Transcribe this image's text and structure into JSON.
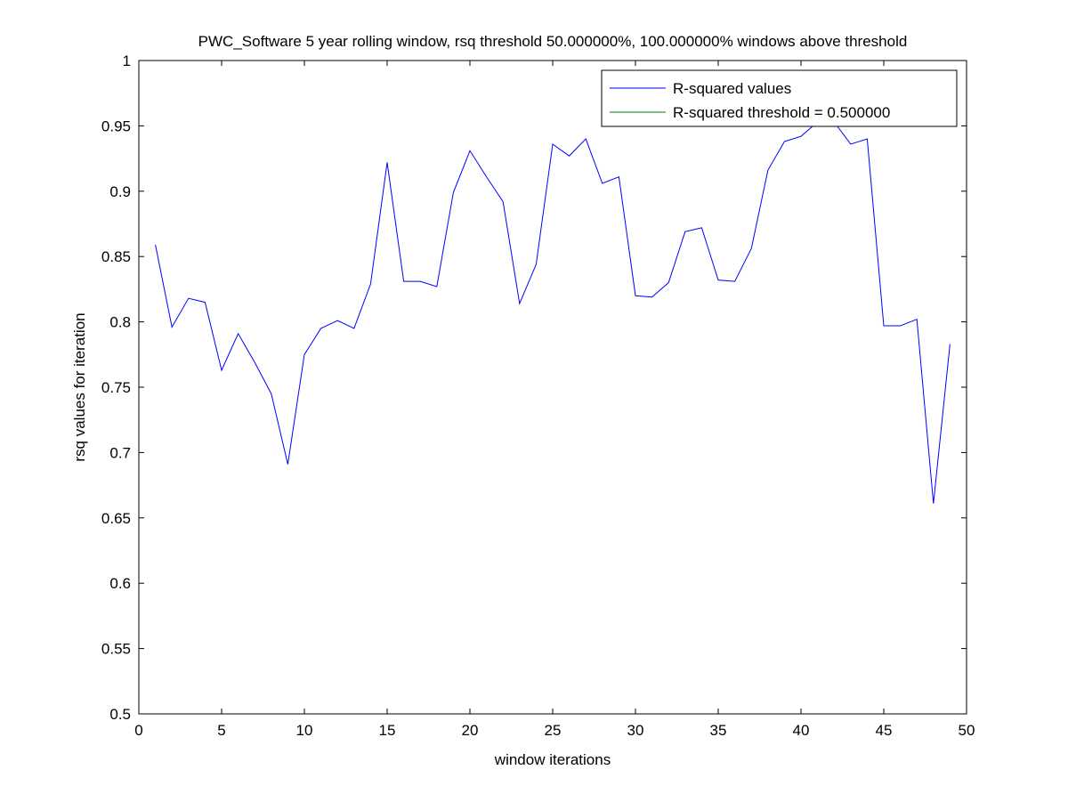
{
  "chart_data": {
    "type": "line",
    "title": "PWC_Software 5 year rolling window, rsq threshold 50.000000%, 100.000000% windows above threshold",
    "xlabel": "window iterations",
    "ylabel": "rsq values for iteration",
    "xlim": [
      0,
      50
    ],
    "ylim": [
      0.5,
      1
    ],
    "xticks": [
      0,
      5,
      10,
      15,
      20,
      25,
      30,
      35,
      40,
      45,
      50
    ],
    "xtick_labels": [
      "0",
      "5",
      "10",
      "15",
      "20",
      "25",
      "30",
      "35",
      "40",
      "45",
      "50"
    ],
    "yticks": [
      0.5,
      0.55,
      0.6,
      0.65,
      0.7,
      0.75,
      0.8,
      0.85,
      0.9,
      0.95,
      1
    ],
    "ytick_labels": [
      "0.5",
      "0.55",
      "0.6",
      "0.65",
      "0.7",
      "0.75",
      "0.8",
      "0.85",
      "0.9",
      "0.95",
      "1"
    ],
    "grid": false,
    "legend_position": "top-right",
    "series": [
      {
        "name": "R-squared values",
        "color": "#0000ff",
        "x": [
          1,
          2,
          3,
          4,
          5,
          6,
          7,
          8,
          9,
          10,
          11,
          12,
          13,
          14,
          15,
          16,
          17,
          18,
          19,
          20,
          21,
          22,
          23,
          24,
          25,
          26,
          27,
          28,
          29,
          30,
          31,
          32,
          33,
          34,
          35,
          36,
          37,
          38,
          39,
          40,
          41,
          42,
          43,
          44,
          45,
          46,
          47,
          48,
          49
        ],
        "y": [
          0.859,
          0.796,
          0.818,
          0.815,
          0.763,
          0.791,
          0.769,
          0.745,
          0.691,
          0.775,
          0.795,
          0.801,
          0.795,
          0.829,
          0.922,
          0.831,
          0.831,
          0.827,
          0.899,
          0.931,
          0.911,
          0.892,
          0.814,
          0.844,
          0.936,
          0.927,
          0.94,
          0.906,
          0.911,
          0.82,
          0.819,
          0.83,
          0.869,
          0.872,
          0.832,
          0.831,
          0.856,
          0.916,
          0.938,
          0.942,
          0.953,
          0.953,
          0.936,
          0.94,
          0.797,
          0.797,
          0.802,
          0.661,
          0.783
        ]
      },
      {
        "name": "R-squared threshold = 0.500000",
        "color": "#008000",
        "x": [
          1,
          49
        ],
        "y": [
          0.5,
          0.5
        ]
      }
    ]
  }
}
